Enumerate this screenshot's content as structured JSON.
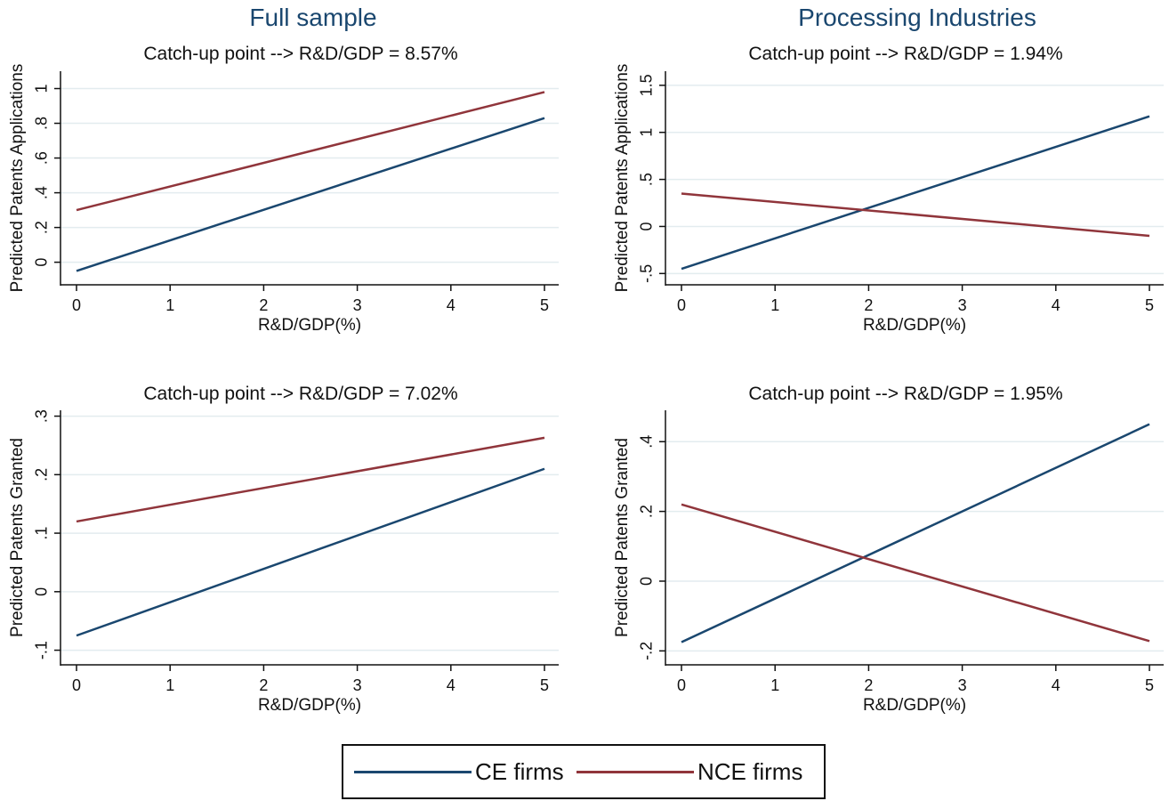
{
  "column_titles": [
    "Full sample",
    "Processing Industries"
  ],
  "legend": [
    {
      "label": "CE firms",
      "color": "#1a476f"
    },
    {
      "label": "NCE firms",
      "color": "#90353b"
    }
  ],
  "chart_data": [
    {
      "type": "line",
      "title": "Catch-up point --> R&D/GDP = 8.57%",
      "xlabel": "R&D/GDP(%)",
      "ylabel": "Predicted Patents Applications",
      "xlim": [
        0,
        5
      ],
      "ylim": [
        -0.13,
        1.1
      ],
      "xticks": [
        0,
        1,
        2,
        3,
        4,
        5
      ],
      "xtick_labels": [
        "0",
        "1",
        "2",
        "3",
        "4",
        "5"
      ],
      "yticks": [
        0,
        0.2,
        0.4,
        0.6,
        0.8,
        1
      ],
      "ytick_labels": [
        "0",
        ".2",
        ".4",
        ".6",
        ".8",
        "1"
      ],
      "grid": true,
      "series": [
        {
          "name": "CE firms",
          "x": [
            0,
            5
          ],
          "values": [
            -0.05,
            0.83
          ]
        },
        {
          "name": "NCE firms",
          "x": [
            0,
            5
          ],
          "values": [
            0.3,
            0.98
          ]
        }
      ]
    },
    {
      "type": "line",
      "title": "Catch-up point --> R&D/GDP = 1.94%",
      "xlabel": "R&D/GDP(%)",
      "ylabel": "Predicted Patents Applications",
      "xlim": [
        0,
        5
      ],
      "ylim": [
        -0.62,
        1.65
      ],
      "xticks": [
        0,
        1,
        2,
        3,
        4,
        5
      ],
      "xtick_labels": [
        "0",
        "1",
        "2",
        "3",
        "4",
        "5"
      ],
      "yticks": [
        -0.5,
        0,
        0.5,
        1,
        1.5
      ],
      "ytick_labels": [
        "-.5",
        "0",
        ".5",
        "1",
        "1.5"
      ],
      "grid": true,
      "series": [
        {
          "name": "CE firms",
          "x": [
            0,
            5
          ],
          "values": [
            -0.45,
            1.17
          ]
        },
        {
          "name": "NCE firms",
          "x": [
            0,
            5
          ],
          "values": [
            0.35,
            -0.1
          ]
        }
      ]
    },
    {
      "type": "line",
      "title": "Catch-up point --> R&D/GDP = 7.02%",
      "xlabel": "R&D/GDP(%)",
      "ylabel": "Predicted Patents Granted",
      "xlim": [
        0,
        5
      ],
      "ylim": [
        -0.125,
        0.31
      ],
      "xticks": [
        0,
        1,
        2,
        3,
        4,
        5
      ],
      "xtick_labels": [
        "0",
        "1",
        "2",
        "3",
        "4",
        "5"
      ],
      "yticks": [
        -0.1,
        0,
        0.1,
        0.2,
        0.3
      ],
      "ytick_labels": [
        "-.1",
        "0",
        ".1",
        ".2",
        ".3"
      ],
      "grid": true,
      "series": [
        {
          "name": "CE firms",
          "x": [
            0,
            5
          ],
          "values": [
            -0.075,
            0.21
          ]
        },
        {
          "name": "NCE firms",
          "x": [
            0,
            5
          ],
          "values": [
            0.12,
            0.263
          ]
        }
      ]
    },
    {
      "type": "line",
      "title": "Catch-up point --> R&D/GDP = 1.95%",
      "xlabel": "R&D/GDP(%)",
      "ylabel": "Predicted Patents Granted",
      "xlim": [
        0,
        5
      ],
      "ylim": [
        -0.24,
        0.49
      ],
      "xticks": [
        0,
        1,
        2,
        3,
        4,
        5
      ],
      "xtick_labels": [
        "0",
        "1",
        "2",
        "3",
        "4",
        "5"
      ],
      "yticks": [
        -0.2,
        0,
        0.2,
        0.4
      ],
      "ytick_labels": [
        "-.2",
        "0",
        ".2",
        ".4"
      ],
      "grid": true,
      "series": [
        {
          "name": "CE firms",
          "x": [
            0,
            5
          ],
          "values": [
            -0.175,
            0.45
          ]
        },
        {
          "name": "NCE firms",
          "x": [
            0,
            5
          ],
          "values": [
            0.22,
            -0.172
          ]
        }
      ]
    }
  ]
}
